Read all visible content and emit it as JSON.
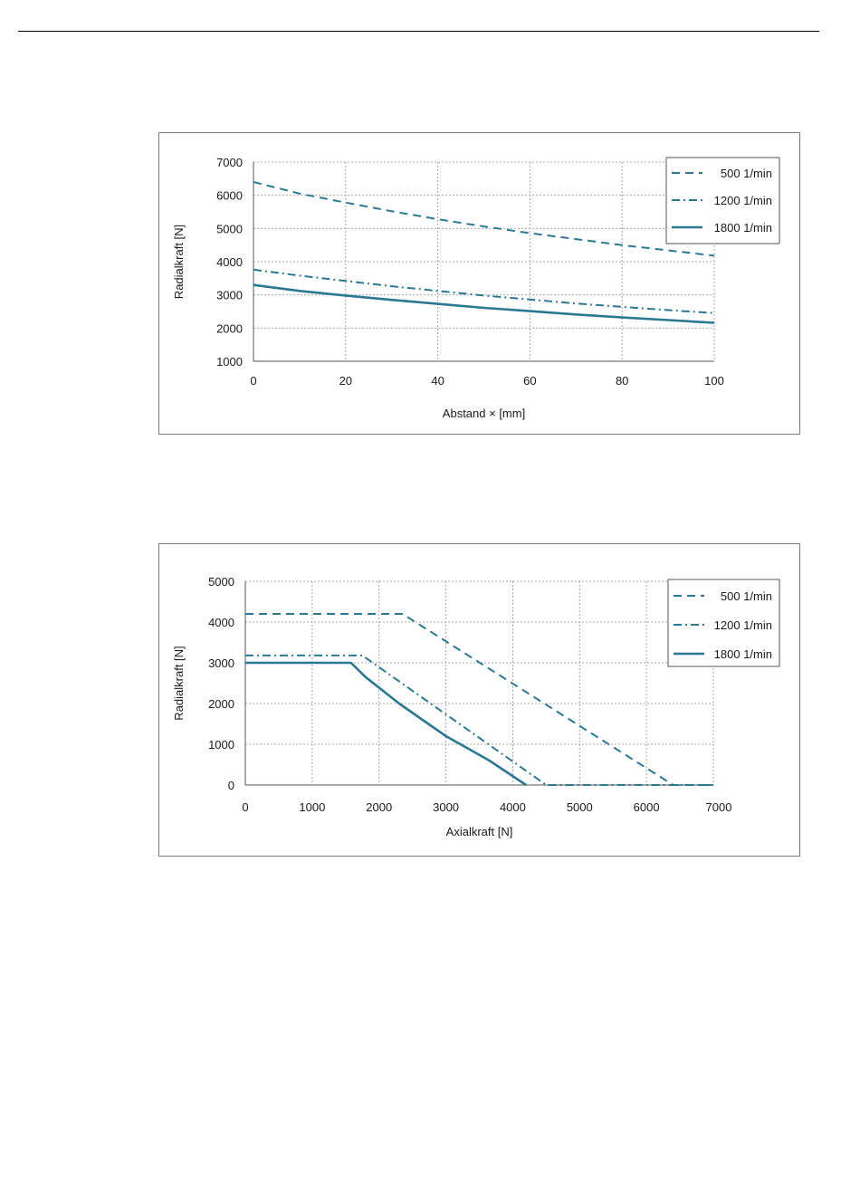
{
  "chart_data": [
    {
      "type": "line",
      "title": "",
      "xlabel": "Abstand × [mm]",
      "ylabel": "Radialkraft [N]",
      "xlim": [
        0,
        100
      ],
      "ylim": [
        1000,
        7000
      ],
      "xticks": [
        "0",
        "20",
        "40",
        "60",
        "80",
        "100"
      ],
      "yticks": [
        "1000",
        "2000",
        "3000",
        "4000",
        "5000",
        "6000",
        "7000"
      ],
      "grid": true,
      "legend_position": "top-right",
      "series": [
        {
          "name": "500  1/min",
          "style": "dash",
          "x": [
            0,
            10,
            20,
            30,
            40,
            50,
            60,
            70,
            80,
            90,
            100
          ],
          "y": [
            6400,
            6050,
            5780,
            5520,
            5280,
            5060,
            4860,
            4680,
            4500,
            4340,
            4180
          ]
        },
        {
          "name": "1200 1/min",
          "style": "dashdot",
          "x": [
            0,
            10,
            20,
            30,
            40,
            50,
            60,
            70,
            80,
            90,
            100
          ],
          "y": [
            3760,
            3580,
            3420,
            3260,
            3120,
            2980,
            2860,
            2740,
            2640,
            2540,
            2450
          ]
        },
        {
          "name": "1800 1/min",
          "style": "solid",
          "x": [
            0,
            10,
            20,
            30,
            40,
            50,
            60,
            70,
            80,
            90,
            100
          ],
          "y": [
            3300,
            3120,
            2980,
            2850,
            2730,
            2610,
            2510,
            2410,
            2320,
            2240,
            2160
          ]
        }
      ]
    },
    {
      "type": "line",
      "title": "",
      "xlabel": "Axialkraft [N]",
      "ylabel": "Radialkraft [N]",
      "xlim": [
        0,
        7000
      ],
      "ylim": [
        0,
        5000
      ],
      "xticks": [
        "0",
        "1000",
        "2000",
        "3000",
        "4000",
        "5000",
        "6000",
        "7000"
      ],
      "yticks": [
        "0",
        "1000",
        "2000",
        "3000",
        "4000",
        "5000"
      ],
      "grid": true,
      "legend_position": "top-right",
      "series": [
        {
          "name": "500  1/min",
          "style": "dash",
          "x": [
            0,
            2350,
            6400,
            7000
          ],
          "y": [
            4200,
            4200,
            0,
            0
          ]
        },
        {
          "name": "1200 1/min",
          "style": "dashdot",
          "x": [
            0,
            1750,
            4500,
            7000
          ],
          "y": [
            3180,
            3180,
            0,
            0
          ]
        },
        {
          "name": "1800 1/min",
          "style": "solid",
          "x": [
            0,
            1580,
            1800,
            2300,
            3000,
            3650,
            4200
          ],
          "y": [
            3000,
            3000,
            2650,
            2000,
            1200,
            600,
            0
          ]
        }
      ]
    }
  ],
  "colors": {
    "series": "#2b7893",
    "grid": "#a8a8a8",
    "axis": "#555555",
    "frame": "#7a7a7a"
  }
}
